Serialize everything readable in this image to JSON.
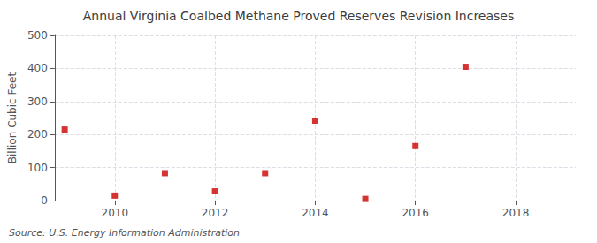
{
  "chart_data": {
    "type": "scatter",
    "title": "Annual Virginia Coalbed Methane Proved Reserves Revision Increases",
    "ylabel": "Billion Cubic Feet",
    "source": "Source: U.S. Energy Information Administration",
    "x": [
      2009,
      2010,
      2011,
      2012,
      2013,
      2014,
      2015,
      2016,
      2017
    ],
    "values": [
      215,
      15,
      83,
      28,
      83,
      242,
      5,
      165,
      405
    ],
    "color": "#cc0000",
    "marker": "square",
    "xlim": [
      2008.8,
      2019.2
    ],
    "xticks": [
      2010,
      2012,
      2014,
      2016,
      2018
    ],
    "ylim": [
      0,
      500
    ],
    "yticks": [
      0,
      100,
      200,
      300,
      400,
      500
    ],
    "grid": true
  }
}
